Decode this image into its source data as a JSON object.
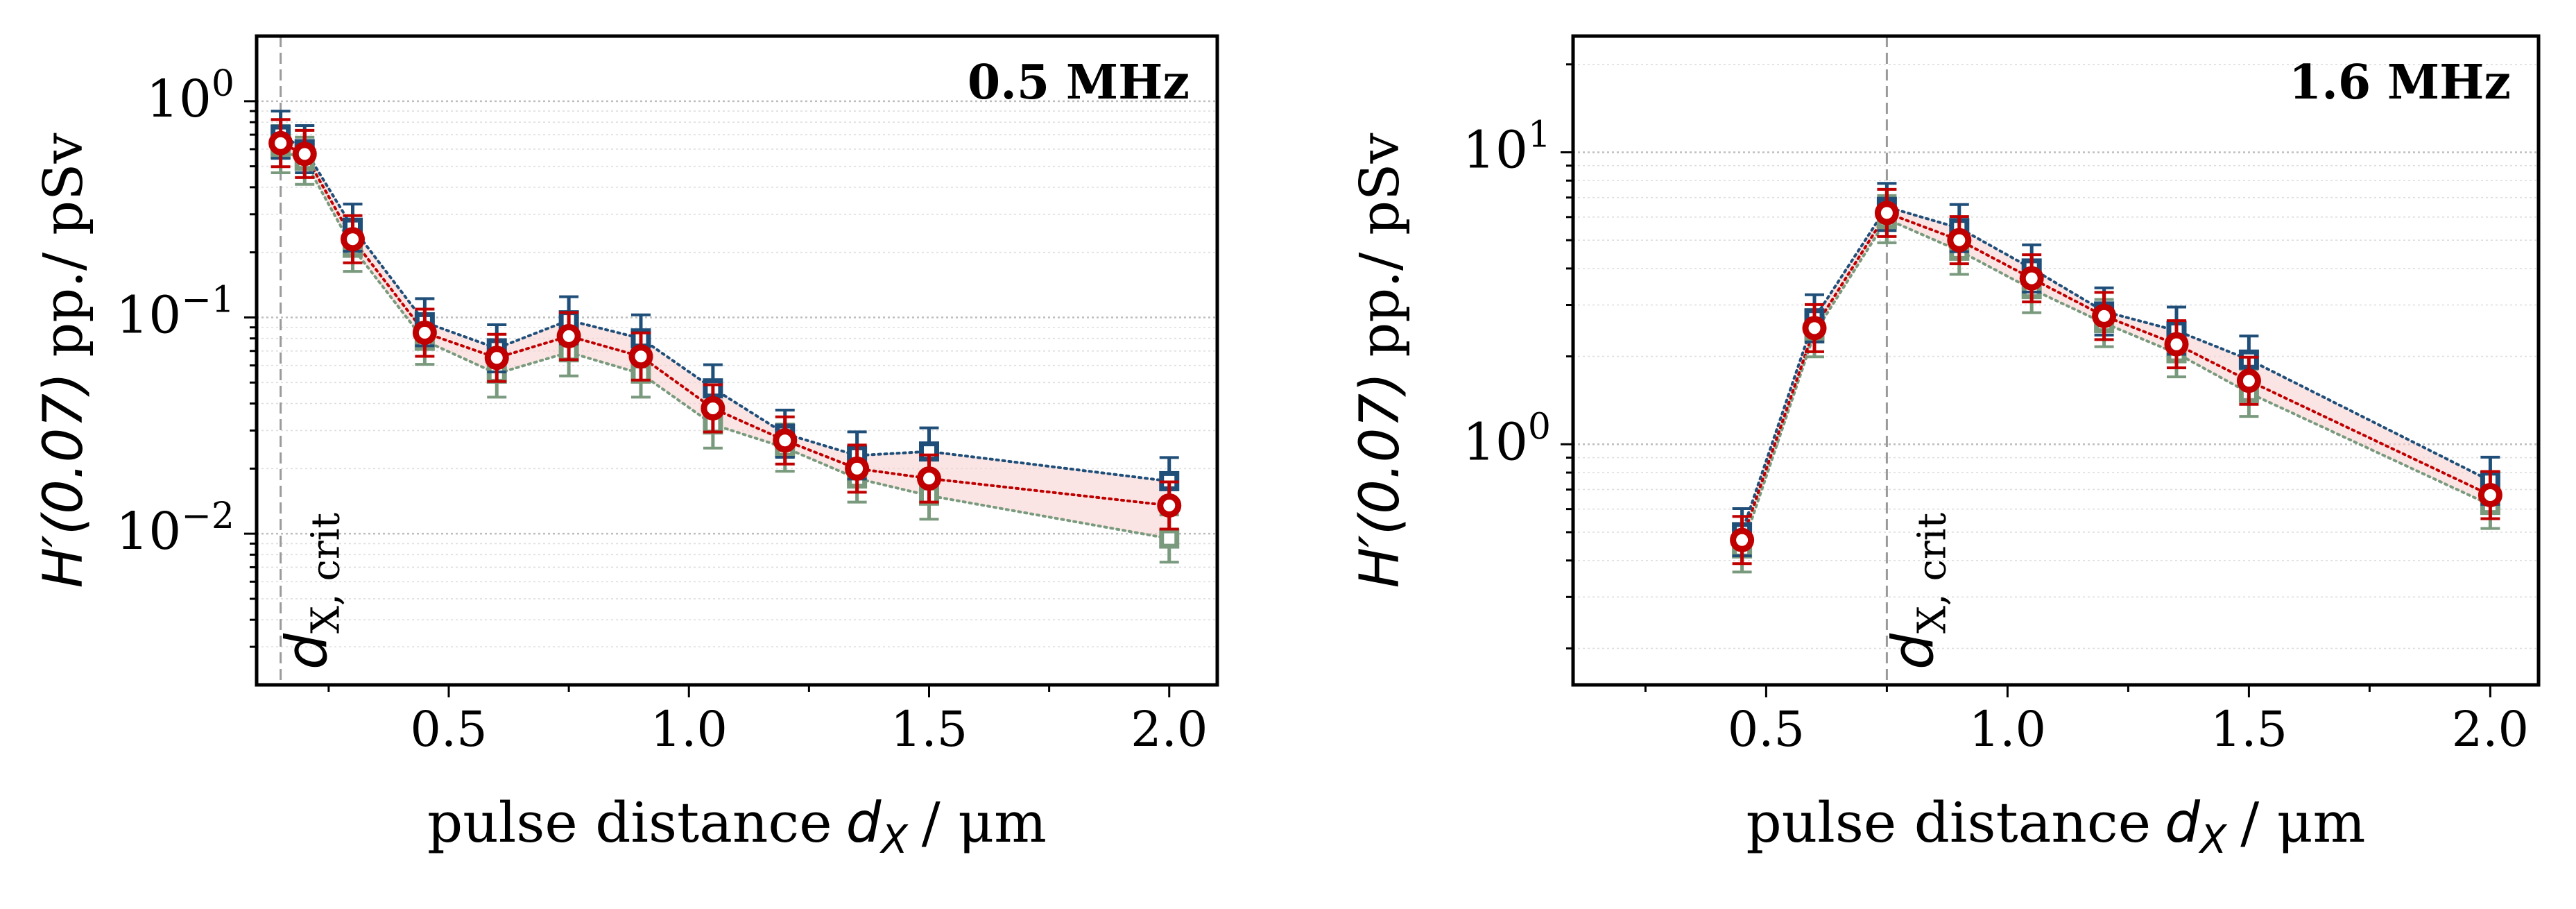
{
  "colors": {
    "series_a": "#1f4e79",
    "series_b": "#7a9a7e",
    "series_mean": "#c00000",
    "band": "#f6d0cd"
  },
  "chart_data": [
    {
      "type": "scatter",
      "panel_label": "0.5 MHz",
      "xlabel": "pulse distance",
      "xlabel_symbol": "d",
      "xlabel_sub": "X",
      "xlabel_unit": "/ μm",
      "ylabel_main": "H′(0.07)",
      "ylabel_unit": "pp./ pSv",
      "yscale": "log",
      "xlim": [
        0.1,
        2.1
      ],
      "ylim": [
        0.002,
        2.0
      ],
      "xticks": [
        0.5,
        1.0,
        1.5,
        2.0
      ],
      "xtick_labels": [
        "0.5",
        "1.0",
        "1.5",
        "2.0"
      ],
      "yticks": [
        0.01,
        0.1,
        1.0
      ],
      "ytick_base": "10",
      "ytick_exponents": [
        "−2",
        "−1",
        "0"
      ],
      "crit_line_x": 0.15,
      "crit_label": "d",
      "crit_label_sub": "X, crit",
      "x": [
        0.15,
        0.2,
        0.3,
        0.45,
        0.6,
        0.75,
        0.9,
        1.05,
        1.2,
        1.35,
        1.5,
        2.0
      ],
      "series": [
        {
          "name": "upper",
          "values": [
            0.7,
            0.6,
            0.26,
            0.095,
            0.072,
            0.097,
            0.08,
            0.047,
            0.029,
            0.023,
            0.024,
            0.0175
          ]
        },
        {
          "name": "lower",
          "values": [
            0.6,
            0.53,
            0.21,
            0.078,
            0.055,
            0.069,
            0.055,
            0.032,
            0.025,
            0.018,
            0.015,
            0.0095
          ]
        },
        {
          "name": "mean",
          "values": [
            0.64,
            0.57,
            0.23,
            0.085,
            0.065,
            0.082,
            0.066,
            0.038,
            0.027,
            0.02,
            0.018,
            0.0135
          ]
        }
      ]
    },
    {
      "type": "scatter",
      "panel_label": "1.6 MHz",
      "xlabel": "pulse distance",
      "xlabel_symbol": "d",
      "xlabel_sub": "X",
      "xlabel_unit": "/ μm",
      "ylabel_main": "H′(0.07)",
      "ylabel_unit": "pp./ pSv",
      "yscale": "log",
      "xlim": [
        0.1,
        2.1
      ],
      "ylim": [
        0.15,
        25.0
      ],
      "xticks": [
        0.5,
        1.0,
        1.5,
        2.0
      ],
      "xtick_labels": [
        "0.5",
        "1.0",
        "1.5",
        "2.0"
      ],
      "yticks": [
        1.0,
        10.0
      ],
      "ytick_base": "10",
      "ytick_exponents": [
        "0",
        "1"
      ],
      "crit_line_x": 0.75,
      "crit_label": "d",
      "crit_label_sub": "X, crit",
      "x": [
        0.45,
        0.6,
        0.75,
        0.9,
        1.05,
        1.2,
        1.35,
        1.5,
        2.0
      ],
      "series": [
        {
          "name": "upper",
          "values": [
            0.5,
            2.7,
            6.5,
            5.5,
            4.0,
            2.85,
            2.45,
            1.95,
            0.75
          ]
        },
        {
          "name": "lower",
          "values": [
            0.44,
            2.4,
            5.9,
            4.6,
            3.4,
            2.6,
            2.05,
            1.5,
            0.62
          ]
        },
        {
          "name": "mean",
          "values": [
            0.47,
            2.5,
            6.2,
            5.0,
            3.7,
            2.75,
            2.2,
            1.65,
            0.67
          ]
        }
      ]
    }
  ]
}
